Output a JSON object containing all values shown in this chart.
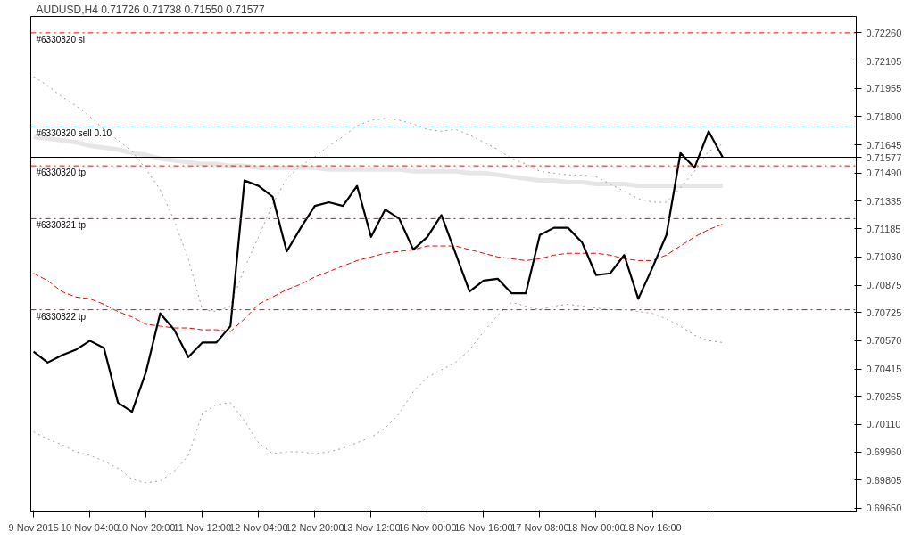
{
  "chart_data": {
    "type": "line",
    "title": "AUDUSD,H4  0.71726 0.71738 0.71550 0.71577",
    "categories": [
      "9 Nov 2015",
      null,
      null,
      null,
      "10 Nov 04:00",
      null,
      null,
      null,
      "10 Nov 20:00",
      null,
      null,
      null,
      "11 Nov 12:00",
      null,
      null,
      null,
      "12 Nov 04:00",
      null,
      null,
      null,
      "12 Nov 20:00",
      null,
      null,
      null,
      "13 Nov 12:00",
      null,
      null,
      null,
      "16 Nov 00:00",
      null,
      null,
      null,
      "16 Nov 16:00",
      null,
      null,
      null,
      "17 Nov 08:00",
      null,
      null,
      null,
      "18 Nov 00:00",
      null,
      null,
      null,
      "18 Nov 16:00",
      null,
      null,
      null,
      null,
      null
    ],
    "series": [
      {
        "color": "#e6e6e6",
        "line_style": "solid",
        "values": [
          0.7169,
          0.7168,
          0.7167,
          0.7166,
          0.7164,
          0.7163,
          0.7162,
          0.716,
          0.7159,
          0.7157,
          0.7156,
          0.7155,
          0.7154,
          0.7154,
          0.7153,
          0.7153,
          0.7152,
          0.7152,
          0.7152,
          0.7152,
          0.7152,
          0.7151,
          0.7151,
          0.7151,
          0.7151,
          0.7151,
          0.7151,
          0.715,
          0.715,
          0.715,
          0.715,
          0.7149,
          0.7149,
          0.7148,
          0.7147,
          0.7146,
          0.7145,
          0.7145,
          0.7144,
          0.7144,
          0.7143,
          0.7143,
          0.7143,
          0.7142,
          0.7142,
          0.7142,
          0.7142,
          0.7142,
          0.7142,
          0.7142
        ]
      },
      {
        "color": "#a0a0a0",
        "line_style": "dotted",
        "values": [
          0.7202,
          0.7197,
          0.7191,
          0.7186,
          0.718,
          0.7173,
          0.7167,
          0.7161,
          0.7151,
          0.714,
          0.7123,
          0.7102,
          0.7074,
          0.7073,
          0.7076,
          0.7097,
          0.7114,
          0.7132,
          0.7146,
          0.7153,
          0.7158,
          0.7164,
          0.7169,
          0.7175,
          0.7178,
          0.7179,
          0.7178,
          0.7176,
          0.7173,
          0.7172,
          0.7173,
          0.717,
          0.7166,
          0.7162,
          0.7157,
          0.7154,
          0.715,
          0.7149,
          0.7148,
          0.7148,
          0.7147,
          0.7143,
          0.7139,
          0.7135,
          0.7133,
          0.7133,
          0.7141,
          0.715,
          0.7161,
          0.7165
        ]
      },
      {
        "color": "#a0a0a0",
        "line_style": "dotted",
        "values": [
          0.7007,
          0.7003,
          0.7,
          0.6996,
          0.6994,
          0.6991,
          0.6987,
          0.6981,
          0.6979,
          0.698,
          0.6985,
          0.6994,
          0.7017,
          0.7022,
          0.7023,
          0.7013,
          0.7001,
          0.6995,
          0.6996,
          0.6996,
          0.6995,
          0.6996,
          0.6998,
          0.7001,
          0.7004,
          0.7009,
          0.7017,
          0.7029,
          0.7037,
          0.7041,
          0.7045,
          0.7052,
          0.7062,
          0.7071,
          0.7078,
          0.7076,
          0.7074,
          0.7076,
          0.7077,
          0.7076,
          0.7075,
          0.7074,
          0.7074,
          0.7073,
          0.7072,
          0.7069,
          0.7065,
          0.706,
          0.7057,
          0.7056
        ]
      },
      {
        "color": "#ff0000",
        "line_style": "dashed",
        "values": [
          0.7094,
          0.709,
          0.7084,
          0.7081,
          0.708,
          0.7077,
          0.7073,
          0.707,
          0.7066,
          0.7065,
          0.7064,
          0.7064,
          0.7063,
          0.7063,
          0.7062,
          0.7069,
          0.7077,
          0.7081,
          0.7085,
          0.7088,
          0.7092,
          0.7095,
          0.7098,
          0.7101,
          0.7103,
          0.7105,
          0.7106,
          0.7107,
          0.7109,
          0.7109,
          0.7109,
          0.7107,
          0.7105,
          0.7103,
          0.7102,
          0.7101,
          0.7102,
          0.7104,
          0.7105,
          0.7105,
          0.7105,
          0.7104,
          0.7102,
          0.7101,
          0.7101,
          0.7104,
          0.7109,
          0.7114,
          0.7118,
          0.7121
        ]
      },
      {
        "color": "#000000",
        "line_style": "solid",
        "values": [
          0.7051,
          0.7045,
          0.7049,
          0.7052,
          0.7057,
          0.7053,
          0.7023,
          0.7018,
          0.704,
          0.7072,
          0.7063,
          0.7048,
          0.7056,
          0.7056,
          0.7065,
          0.7145,
          0.7142,
          0.7136,
          0.7106,
          0.7119,
          0.7131,
          0.7133,
          0.7131,
          0.7142,
          0.7114,
          0.7129,
          0.7124,
          0.7107,
          0.7114,
          0.7126,
          0.7105,
          0.7084,
          0.709,
          0.7091,
          0.7083,
          0.7083,
          0.7115,
          0.7119,
          0.7119,
          0.7111,
          0.7093,
          0.7094,
          0.7104,
          0.708,
          0.7097,
          0.7115,
          0.716,
          0.7152,
          0.7172,
          0.71577
        ]
      }
    ],
    "ylim": [
      0.6963,
      0.7235
    ],
    "yticks": [
      {
        "value": 0.7226,
        "label": "0.72260"
      },
      0.72105,
      0.71955,
      {
        "value": 0.718,
        "label": "0.71800"
      },
      0.71645,
      {
        "value": 0.7149,
        "label": "0.71490"
      },
      0.71335,
      0.71185,
      {
        "value": 0.7103,
        "label": "0.71030"
      },
      0.70875,
      0.70725,
      {
        "value": 0.7057,
        "label": "0.70570"
      },
      0.70415,
      0.70265,
      {
        "value": 0.7011,
        "label": "0.70110"
      },
      {
        "value": 0.6996,
        "label": "0.69960"
      },
      0.69805,
      {
        "value": 0.6965,
        "label": "0.69650"
      }
    ],
    "ref_lines": [
      {
        "axis": "y",
        "value": 0.7226,
        "label": "#6330320 sl",
        "color": "#ff0000",
        "line_style": "dashdot"
      },
      {
        "axis": "y",
        "value": 0.71744,
        "label": "#6330320 sell 0.10",
        "color": "#1e90ff",
        "line_style": "dashdot"
      },
      {
        "axis": "y",
        "value": 0.71577,
        "label": "0.71577",
        "color": "#000000",
        "line_style": "solid"
      },
      {
        "axis": "y",
        "value": 0.7153,
        "label": "#6330320 tp",
        "color": "#ff0000",
        "line_style": "dashdot"
      },
      {
        "axis": "y",
        "value": 0.7124,
        "label": "#6330321 tp",
        "color": "#ff0000",
        "line_style": "dashdot"
      },
      {
        "axis": "y",
        "value": 0.7074,
        "label": "#6330322 tp",
        "color": "#ff0000",
        "line_style": "dashdot"
      }
    ],
    "grid": false
  }
}
